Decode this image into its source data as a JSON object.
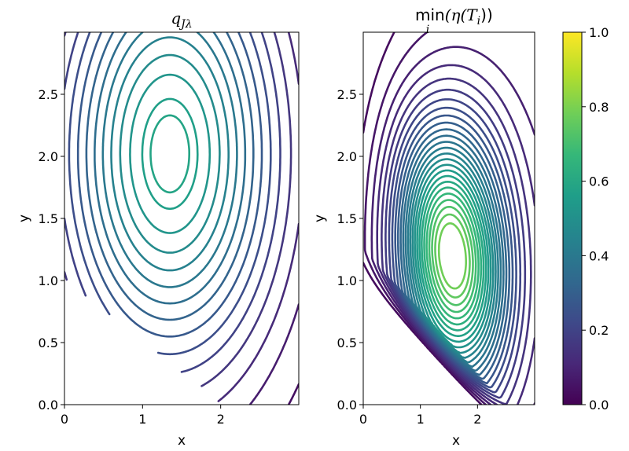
{
  "chart_data": [
    {
      "type": "contour",
      "title": "q_{Jλ}",
      "title_parts": {
        "main": "q",
        "sub": "Jλ"
      },
      "xlabel": "x",
      "ylabel": "y",
      "xlim": [
        0,
        3
      ],
      "ylim": [
        0,
        3
      ],
      "xticks": [
        "0",
        "1",
        "2"
      ],
      "yticks": [
        "0.0",
        "0.5",
        "1.0",
        "1.5",
        "2.0",
        "2.5"
      ],
      "xtick_values": [
        0,
        1,
        2
      ],
      "ytick_values": [
        0,
        0.5,
        1.0,
        1.5,
        2.0,
        2.5
      ],
      "colormap": "viridis",
      "feasible_region": "x/2 + y >= 1",
      "peak": {
        "x": 1.35,
        "y": 2.02,
        "value": 0.6
      },
      "contour_levels": [
        0.04,
        0.08,
        0.12,
        0.16,
        0.2,
        0.24,
        0.28,
        0.32,
        0.36,
        0.4,
        0.44,
        0.48,
        0.52,
        0.56,
        0.58
      ],
      "grid": false
    },
    {
      "type": "contour",
      "title": "min_i(η(T_i))",
      "title_parts": {
        "op": "min",
        "op_sub": "i",
        "expr": "(η(T",
        "expr_sub": "i",
        "close": "))"
      },
      "xlabel": "x",
      "ylabel": "y",
      "xlim": [
        0,
        3
      ],
      "ylim": [
        0,
        3
      ],
      "xticks": [
        "0",
        "1",
        "2"
      ],
      "yticks": [
        "0.0",
        "0.5",
        "1.0",
        "1.5",
        "2.0",
        "2.5"
      ],
      "xtick_values": [
        0,
        1,
        2
      ],
      "ytick_values": [
        0,
        0.5,
        1.0,
        1.5,
        2.0,
        2.5
      ],
      "colormap": "viridis",
      "feasible_region": "x/2 + y >= 1",
      "peak": {
        "x": 1.55,
        "y": 1.2,
        "value": 0.8
      },
      "contour_levels": [
        0.03,
        0.06,
        0.09,
        0.12,
        0.15,
        0.18,
        0.21,
        0.24,
        0.27,
        0.3,
        0.33,
        0.36,
        0.39,
        0.42,
        0.45,
        0.48,
        0.51,
        0.54,
        0.57,
        0.6,
        0.63,
        0.66,
        0.69,
        0.72,
        0.75,
        0.78
      ],
      "grid": false
    }
  ],
  "colorbar": {
    "colormap": "viridis",
    "range": [
      0.0,
      1.0
    ],
    "ticks": [
      "0.0",
      "0.2",
      "0.4",
      "0.6",
      "0.8",
      "1.0"
    ],
    "tick_values": [
      0.0,
      0.2,
      0.4,
      0.6,
      0.8,
      1.0
    ],
    "placement": "right"
  },
  "colors": {
    "viridis_stops": [
      "#440154",
      "#482878",
      "#3e4989",
      "#31688e",
      "#26828e",
      "#1f9e89",
      "#35b779",
      "#6ece58",
      "#b5de2b",
      "#fde725"
    ]
  }
}
